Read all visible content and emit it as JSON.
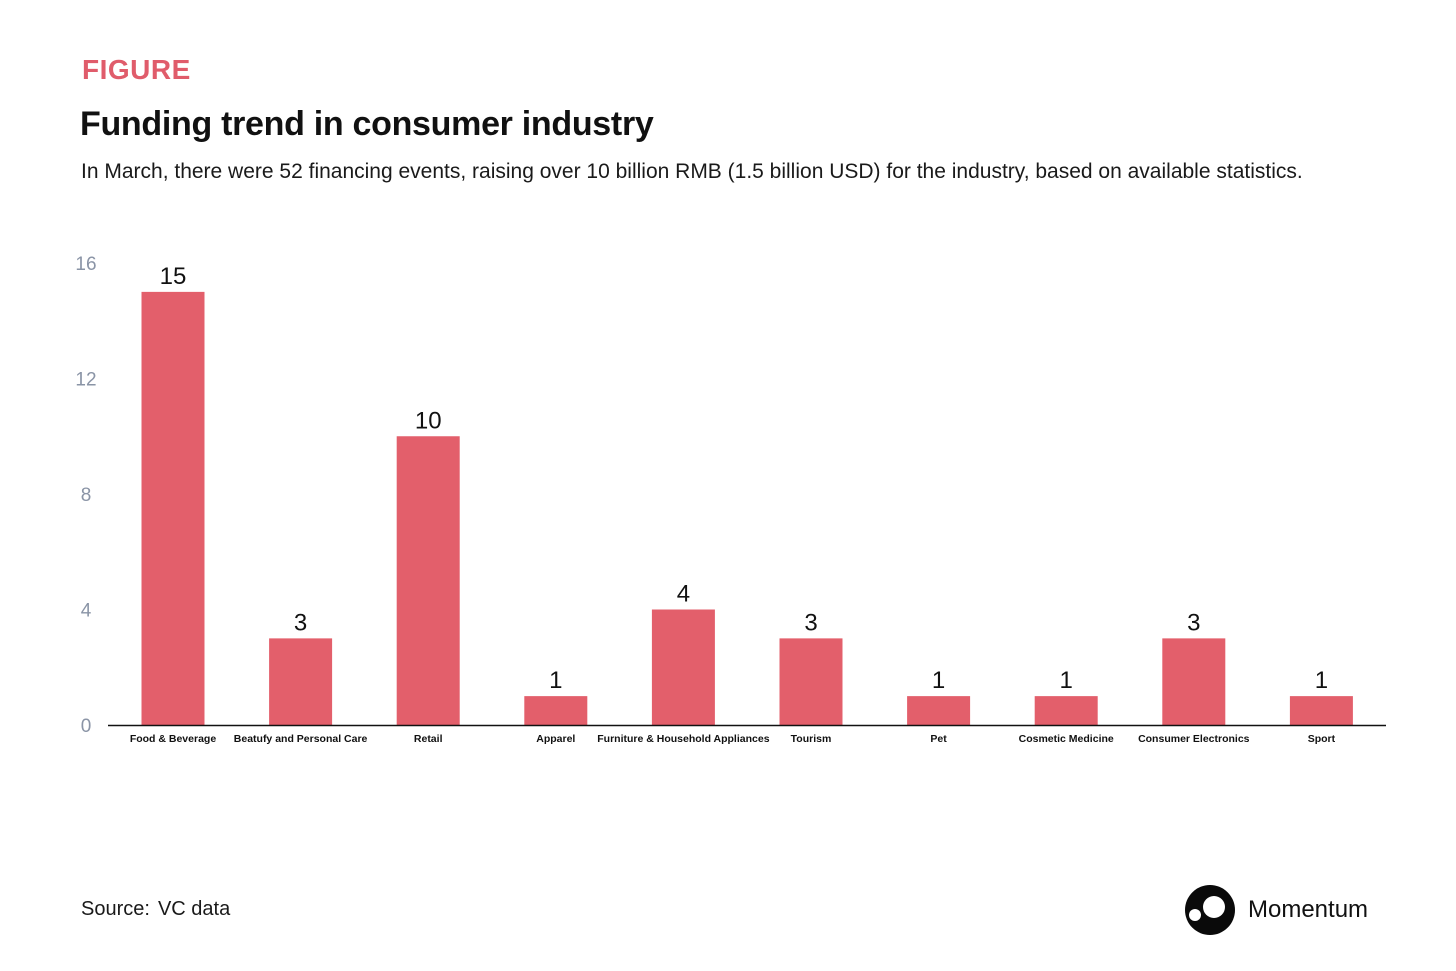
{
  "header": {
    "eyebrow": "FIGURE",
    "title": "Funding trend in consumer industry",
    "subtitle": "In March, there were 52 financing events, raising over 10 billion RMB (1.5 billion USD) for the industry, based on available statistics."
  },
  "chart_data": {
    "type": "bar",
    "categories": [
      "Food & Beverage",
      "Beatufy and Personal Care",
      "Retail",
      "Apparel",
      "Furniture & Household Appliances",
      "Tourism",
      "Pet",
      "Cosmetic Medicine",
      "Consumer Electronics",
      "Sport"
    ],
    "values": [
      15,
      3,
      10,
      1,
      4,
      3,
      1,
      1,
      3,
      1
    ],
    "ylim": [
      0,
      16
    ],
    "yticks": [
      0,
      4,
      8,
      12,
      16
    ],
    "grid": false,
    "data_labels": true,
    "bar_color": "#e35f6b",
    "axis_label_color": "#8a94a6"
  },
  "footer": {
    "source_label": "Source:",
    "source_value": "VC data",
    "brand_name": "Momentum",
    "brand_icon": "momentum-logo-icon"
  }
}
